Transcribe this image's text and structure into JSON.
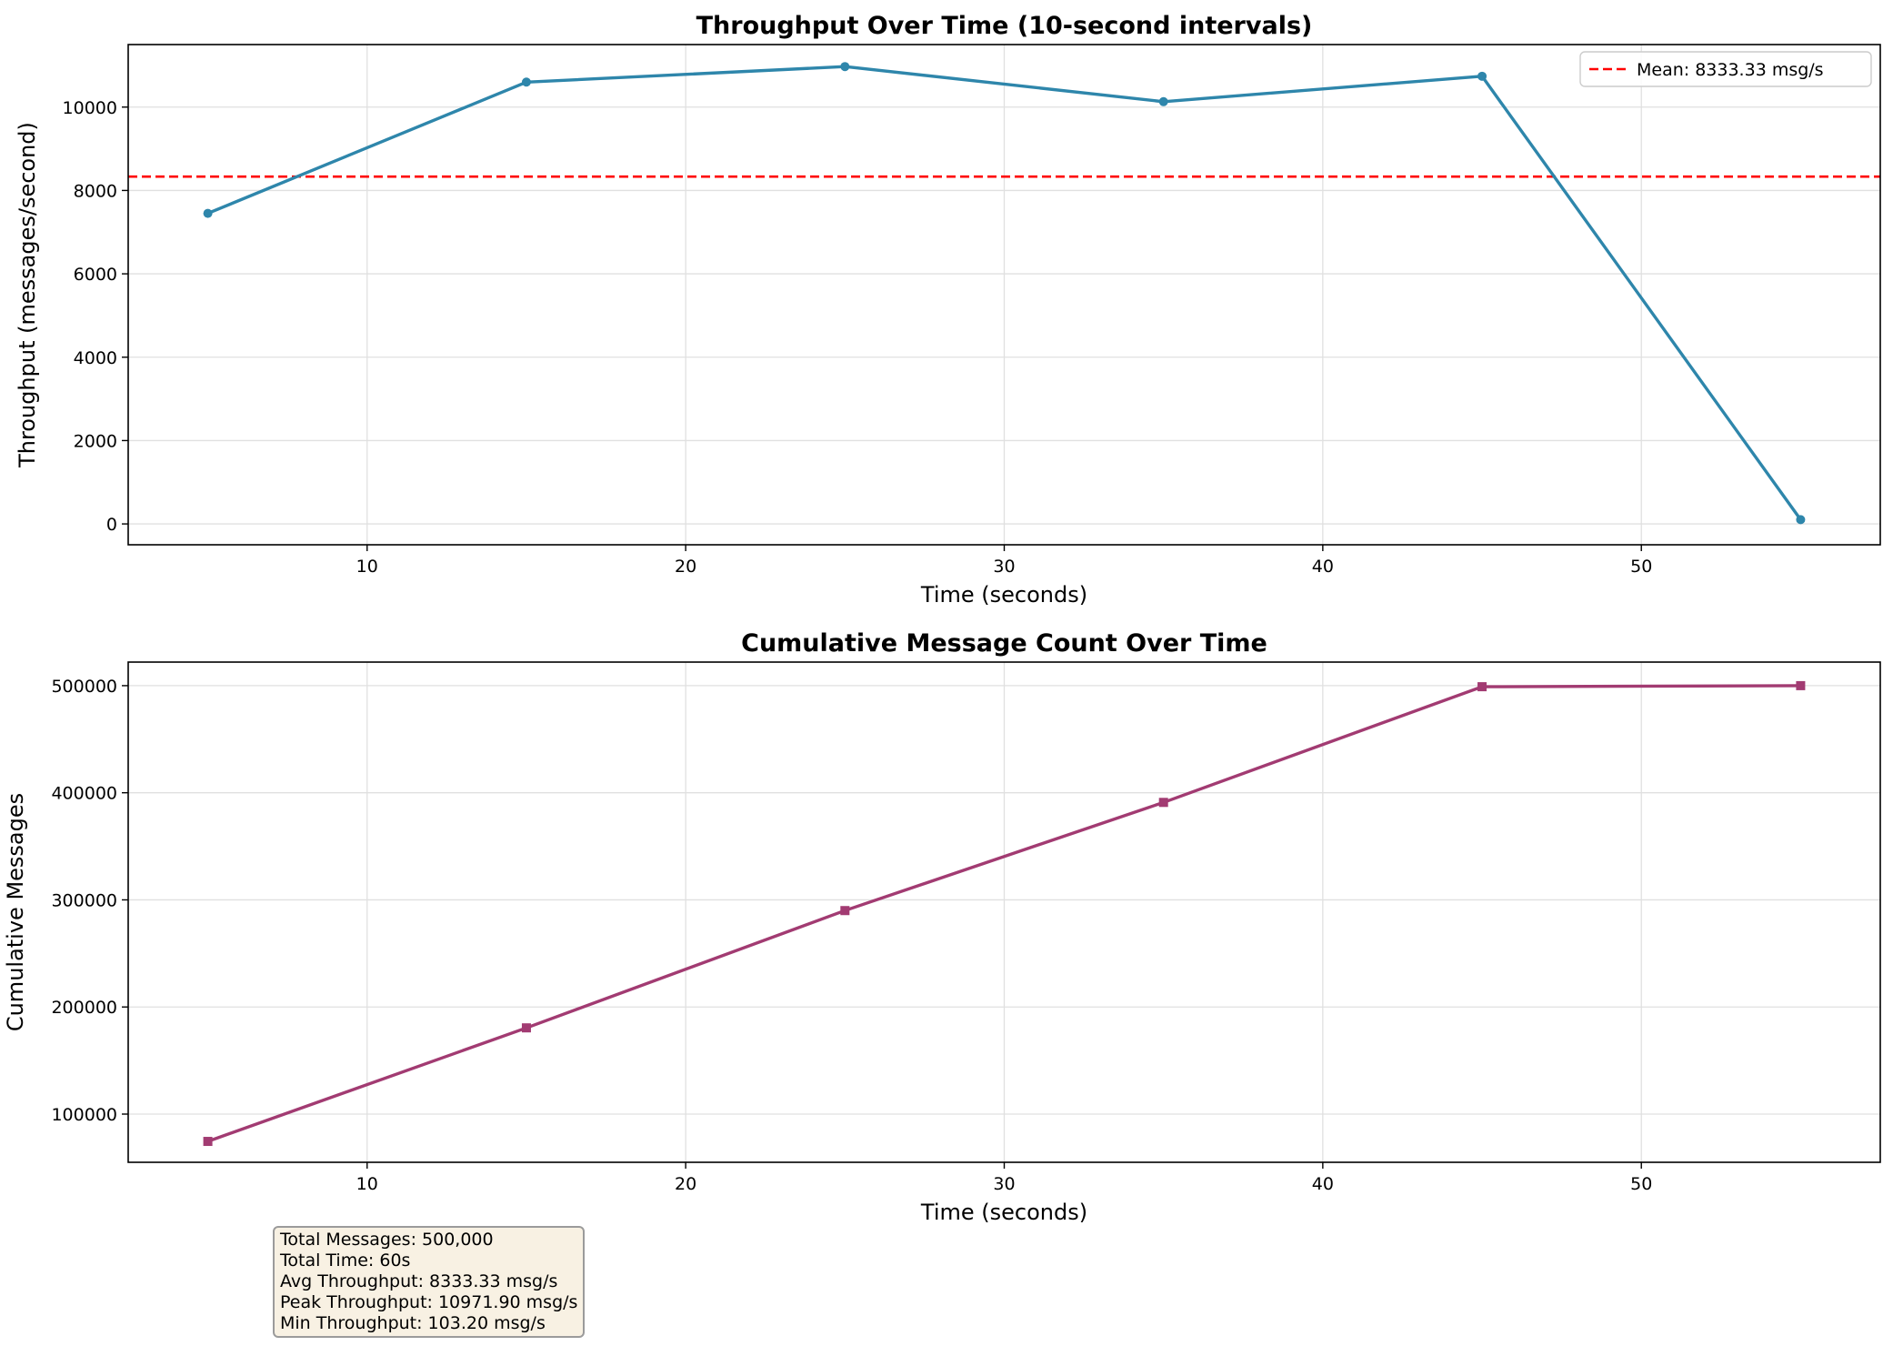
{
  "chart_data": [
    {
      "type": "line",
      "title": "Throughput Over Time (10-second intervals)",
      "xlabel": "Time (seconds)",
      "ylabel": "Throughput (messages/second)",
      "xlim": [
        2.5,
        57.5
      ],
      "ylim": [
        -500,
        11500
      ],
      "xticks": [
        "10",
        "20",
        "30",
        "40",
        "50"
      ],
      "yticks": [
        "0",
        "2000",
        "4000",
        "6000",
        "8000",
        "10000"
      ],
      "grid": true,
      "x": [
        5,
        15,
        25,
        35,
        45,
        55
      ],
      "series": [
        {
          "values": [
            7450,
            10600,
            10971.9,
            10130,
            10740,
            103.2
          ],
          "color": "#2e86ab",
          "marker": "circle"
        }
      ],
      "mean_line": {
        "value": 8333.33,
        "label": "Mean: 8333.33 msg/s",
        "color": "#ff0000"
      },
      "legend": {
        "placement": "top-right"
      }
    },
    {
      "type": "line",
      "title": "Cumulative Message Count Over Time",
      "xlabel": "Time (seconds)",
      "ylabel": "Cumulative Messages",
      "xlim": [
        2.5,
        57.5
      ],
      "ylim": [
        55000,
        522000
      ],
      "xticks": [
        "10",
        "20",
        "30",
        "40",
        "50"
      ],
      "yticks": [
        "100000",
        "200000",
        "300000",
        "400000",
        "500000"
      ],
      "grid": true,
      "x": [
        5,
        15,
        25,
        35,
        45,
        55
      ],
      "series": [
        {
          "values": [
            74500,
            180500,
            290000,
            391000,
            499000,
            500000
          ],
          "color": "#a23b72",
          "marker": "square"
        }
      ]
    }
  ],
  "stats": [
    "Total Messages: 500,000",
    "Total Time: 60s",
    "Avg Throughput: 8333.33 msg/s",
    "Peak Throughput: 10971.90 msg/s",
    "Min Throughput: 103.20 msg/s"
  ]
}
